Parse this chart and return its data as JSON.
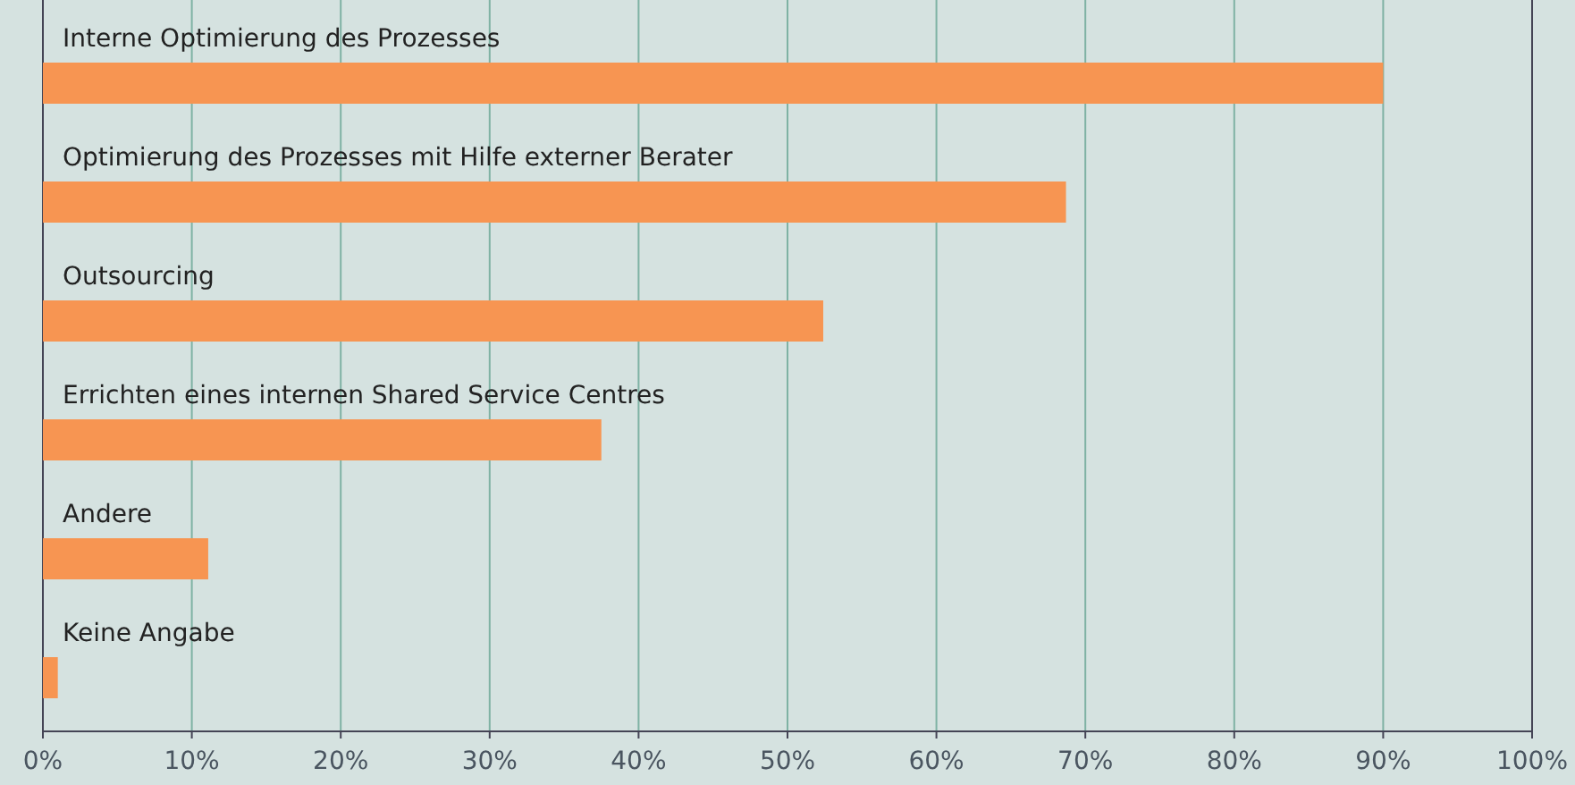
{
  "chart_data": {
    "type": "bar",
    "orientation": "horizontal",
    "categories": [
      "Interne Optimierung des Prozesses",
      "Optimierung des Prozesses mit Hilfe externer Berater",
      "Outsourcing",
      "Errichten eines internen Shared Service Centres",
      "Andere",
      "Keine Angabe"
    ],
    "values": [
      90,
      68.7,
      52.4,
      37.5,
      11.1,
      1.0
    ],
    "color": "#f79552",
    "xlim": [
      0,
      100
    ],
    "xticks": [
      {
        "value": 0,
        "label": "0%"
      },
      {
        "value": 10,
        "label": "10%"
      },
      {
        "value": 20,
        "label": "20%"
      },
      {
        "value": 30,
        "label": "30%"
      },
      {
        "value": 40,
        "label": "40%"
      },
      {
        "value": 50,
        "label": "50%"
      },
      {
        "value": 60,
        "label": "60%"
      },
      {
        "value": 70,
        "label": "70%"
      },
      {
        "value": 80,
        "label": "80%"
      },
      {
        "value": 90,
        "label": "90%"
      },
      {
        "value": 100,
        "label": "100%"
      }
    ],
    "grid": "x"
  }
}
